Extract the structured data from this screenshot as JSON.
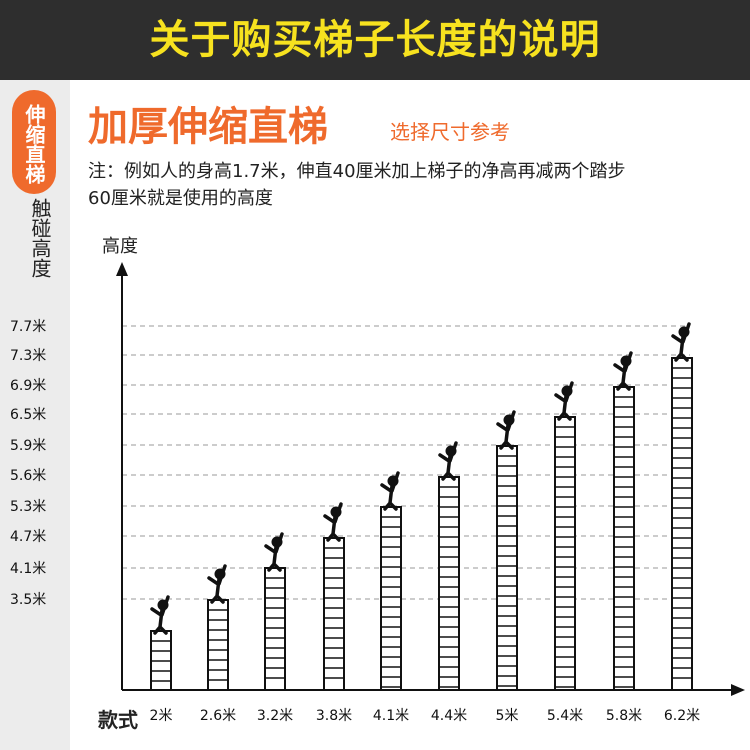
{
  "banner": {
    "title": "关于购买梯子长度的说明"
  },
  "sidebar": {
    "pill": "伸缩直梯",
    "text": "触碰高度"
  },
  "heading": {
    "main": "加厚伸缩直梯",
    "sub": "选择尺寸参考"
  },
  "note": {
    "text": "注：例如人的身高1.7米，伸直40厘米加上梯子的净高再减两个踏步60厘米就是使用的高度"
  },
  "chart_data": {
    "type": "bar",
    "ylabel": "高度",
    "xlabel": "款式",
    "categories": [
      "2米",
      "2.6米",
      "3.2米",
      "3.8米",
      "4.1米",
      "4.4米",
      "5米",
      "5.4米",
      "5.8米",
      "6.2米"
    ],
    "values": [
      3.5,
      4.1,
      4.7,
      5.3,
      5.6,
      5.9,
      6.5,
      6.9,
      7.3,
      7.7
    ],
    "y_tick_labels": [
      "7.7米",
      "7.3米",
      "6.9米",
      "6.5米",
      "5.9米",
      "5.6米",
      "5.3米",
      "4.7米",
      "4.1米",
      "3.5米"
    ],
    "grid": "dashed",
    "style": "ladder bars with person figure on top"
  }
}
